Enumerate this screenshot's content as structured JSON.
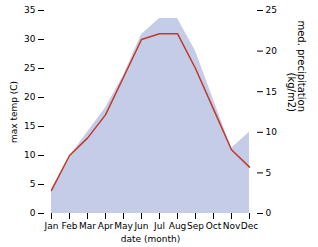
{
  "chart_data": {
    "type": "line",
    "categories": [
      "Jan",
      "Feb",
      "Mar",
      "Apr",
      "May",
      "Jun",
      "Jul",
      "Aug",
      "Sep",
      "Oct",
      "Nov",
      "Dec"
    ],
    "xlabel": "date (month)",
    "ylabel": "max temp (C)",
    "y2label": "med. precipitation\n(kg/m2)",
    "series": [
      {
        "type": "area",
        "axis": "y2",
        "color": "#c5cce8",
        "values": [
          3,
          7,
          10,
          13,
          17,
          22,
          24,
          24,
          20,
          14,
          8,
          10
        ]
      },
      {
        "type": "line",
        "color": "#c0392b",
        "values": [
          4,
          10,
          13,
          17,
          23.5,
          30,
          31,
          31,
          25,
          18,
          11,
          8
        ]
      }
    ],
    "ylim": [
      0,
      35
    ],
    "yticks": [
      0,
      5,
      10,
      15,
      20,
      25,
      30,
      35
    ],
    "y2lim": [
      0,
      25
    ],
    "y2ticks": [
      0,
      5,
      10,
      15,
      20,
      25
    ],
    "grid": false
  }
}
